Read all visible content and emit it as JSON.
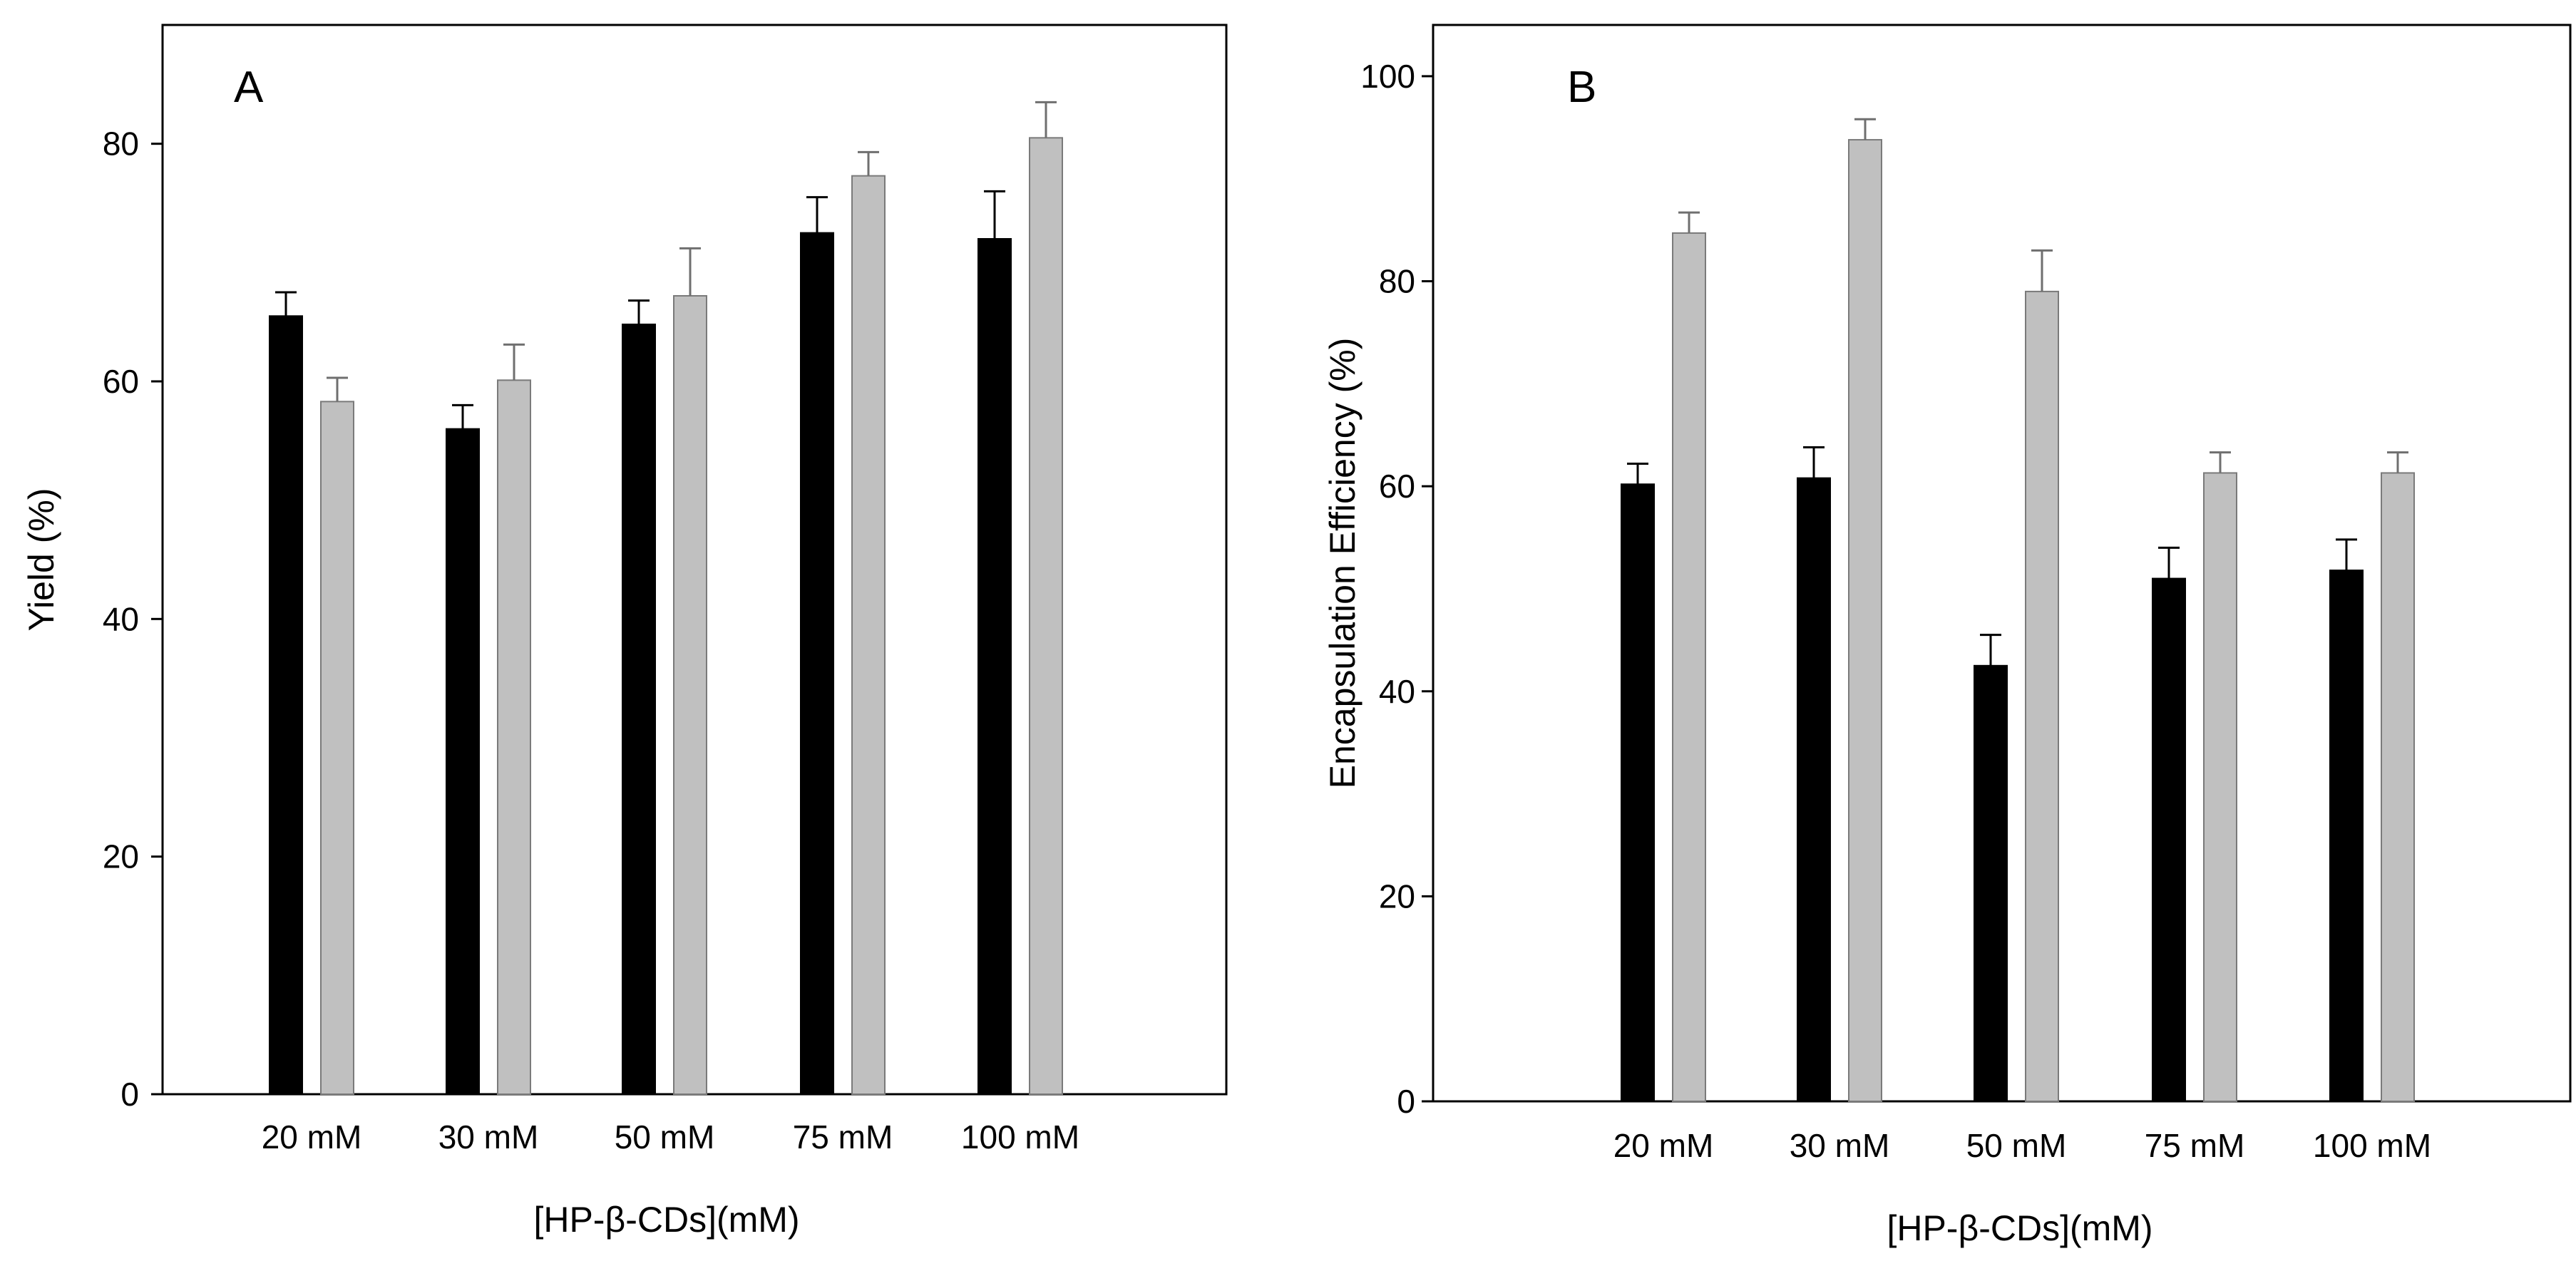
{
  "chart_data": [
    {
      "type": "bar",
      "panel_label": "A",
      "title": "",
      "xlabel": "[HP-β-CDs](mM)",
      "ylabel": "Yield (%)",
      "categories": [
        "20 mM",
        "30 mM",
        "50 mM",
        "75 mM",
        "100 mM"
      ],
      "ylim": [
        0,
        90
      ],
      "yticks": [
        0,
        20,
        40,
        60,
        80
      ],
      "ytick_labels": [
        "0",
        "20",
        "40",
        "60",
        "80"
      ],
      "grid": false,
      "legend": "none",
      "series": [
        {
          "name": "black",
          "color": "#000000",
          "values": [
            65.5,
            56,
            64.8,
            72.5,
            72
          ],
          "errors": [
            2,
            2,
            2,
            3,
            4
          ]
        },
        {
          "name": "gray",
          "color": "#c0c0c0",
          "values": [
            58.3,
            60.1,
            67.2,
            77.3,
            80.5
          ],
          "errors": [
            2,
            3,
            4,
            2,
            3
          ]
        }
      ]
    },
    {
      "type": "bar",
      "panel_label": "B",
      "title": "",
      "xlabel": "[HP-β-CDs](mM)",
      "ylabel": "Encapsulation Efficiency (%)",
      "categories": [
        "20 mM",
        "30 mM",
        "50 mM",
        "75 mM",
        "100 mM"
      ],
      "ylim": [
        0,
        105
      ],
      "yticks": [
        0,
        20,
        40,
        60,
        80,
        100
      ],
      "ytick_labels": [
        "0",
        "20",
        "40",
        "60",
        "80",
        "100"
      ],
      "grid": false,
      "legend": "none",
      "series": [
        {
          "name": "black",
          "color": "#000000",
          "values": [
            60.2,
            60.8,
            42.5,
            51,
            51.8
          ],
          "errors": [
            2,
            3,
            3,
            3,
            3
          ]
        },
        {
          "name": "gray",
          "color": "#c0c0c0",
          "values": [
            84.7,
            93.8,
            79,
            61.3,
            61.3
          ],
          "errors": [
            2,
            2,
            4,
            2,
            2
          ]
        }
      ]
    }
  ]
}
